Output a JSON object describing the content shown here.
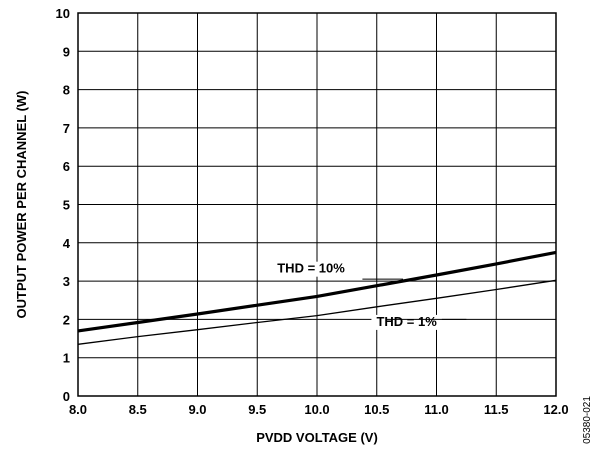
{
  "chart_data": {
    "type": "line",
    "xlabel": "PVDD VOLTAGE (V)",
    "ylabel": "OUTPUT POWER PER CHANNEL (W)",
    "xlim": [
      8.0,
      12.0
    ],
    "ylim": [
      0,
      10
    ],
    "x_ticks": [
      "8.0",
      "8.5",
      "9.0",
      "9.5",
      "10.0",
      "10.5",
      "11.0",
      "11.5",
      "12.0"
    ],
    "y_ticks": [
      "0",
      "1",
      "2",
      "3",
      "4",
      "5",
      "6",
      "7",
      "8",
      "9",
      "10"
    ],
    "grid": true,
    "series": [
      {
        "name": "THD = 10%",
        "x": [
          8.0,
          8.5,
          9.0,
          9.5,
          10.0,
          10.5,
          11.0,
          11.5,
          12.0
        ],
        "y": [
          1.7,
          1.92,
          2.14,
          2.37,
          2.6,
          2.88,
          3.16,
          3.45,
          3.75
        ]
      },
      {
        "name": "THD = 1%",
        "x": [
          8.0,
          8.5,
          9.0,
          9.5,
          10.0,
          10.5,
          11.0,
          11.5,
          12.0
        ],
        "y": [
          1.35,
          1.55,
          1.73,
          1.92,
          2.1,
          2.33,
          2.55,
          2.78,
          3.02
        ]
      }
    ],
    "annotations": [
      {
        "text": "THD = 10%",
        "series": 0
      },
      {
        "text": "THD = 1%",
        "series": 1
      }
    ],
    "figure_id": "05380-021"
  }
}
